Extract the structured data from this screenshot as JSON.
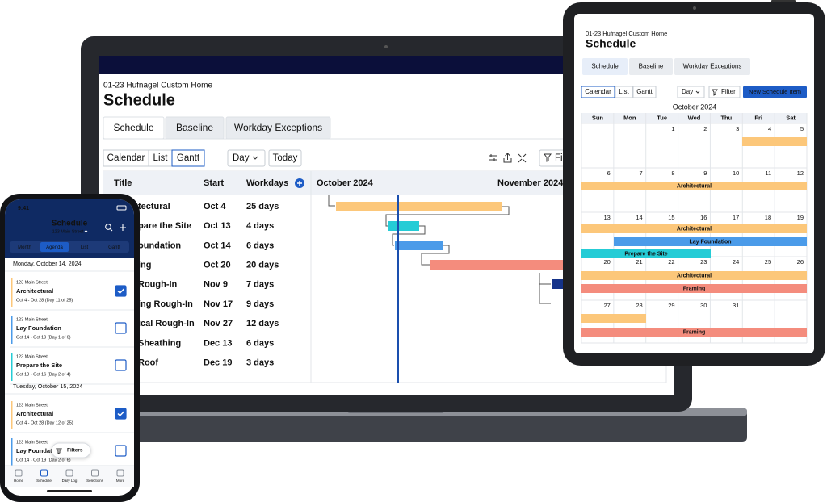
{
  "laptop": {
    "project": "01-23 Hufnagel Custom Home",
    "title": "Schedule",
    "tabs": [
      "Schedule",
      "Baseline",
      "Workday Exceptions"
    ],
    "views": [
      "Calendar",
      "List",
      "Gantt"
    ],
    "zoom": "Day",
    "today": "Today",
    "filter": "Fi",
    "columns": [
      "Title",
      "Start",
      "Workdays"
    ],
    "months": [
      "October 2024",
      "November 2024"
    ],
    "rows": [
      {
        "title": "tectural",
        "start": "Oct 4",
        "workdays": "25 days"
      },
      {
        "title": "pare the Site",
        "start": "Oct 13",
        "workdays": "4 days"
      },
      {
        "title": "oundation",
        "start": "Oct 14",
        "workdays": "6 days"
      },
      {
        "title": "ing",
        "start": "Oct 20",
        "workdays": "20 days"
      },
      {
        "title": "Rough-In",
        "start": "Nov 9",
        "workdays": "7 days"
      },
      {
        "title": "ing Rough-In",
        "start": "Nov 17",
        "workdays": "9 days"
      },
      {
        "title": "ical Rough-In",
        "start": "Nov 27",
        "workdays": "12 days"
      },
      {
        "title": "Sheathing",
        "start": "Dec 13",
        "workdays": "6 days"
      },
      {
        "title": "Roof",
        "start": "Dec 19",
        "workdays": "3 days"
      }
    ]
  },
  "tablet": {
    "project": "01-23 Hufnagel Custom Home",
    "title": "Schedule",
    "tabs": [
      "Schedule",
      "Baseline",
      "Workday Exceptions"
    ],
    "views": [
      "Calendar",
      "List",
      "Gantt"
    ],
    "zoom": "Day",
    "filter": "Filter",
    "new_item": "New Schedule Item",
    "month": "October 2024",
    "weekdays": [
      "Sun",
      "Mon",
      "Tue",
      "Wed",
      "Thu",
      "Fri",
      "Sat"
    ],
    "weeks": [
      [
        1,
        2,
        3,
        4,
        5
      ],
      [
        6,
        7,
        8,
        9,
        10,
        11,
        12
      ],
      [
        13,
        14,
        15,
        16,
        17,
        18,
        19
      ],
      [
        20,
        21,
        22,
        23,
        24,
        25,
        26
      ],
      [
        27,
        28,
        29,
        30,
        31
      ]
    ],
    "event_labels": [
      "Architectural",
      "Architectural",
      "Lay Foundation",
      "Prepare the Site",
      "Architectural",
      "Framing",
      "Framing"
    ]
  },
  "phone": {
    "time": "9:41",
    "title": "Schedule",
    "subtitle": "123 Main Street",
    "tabs": [
      "Month",
      "Agenda",
      "List",
      "Gantt"
    ],
    "days": [
      {
        "heading": "Monday, October 14, 2024",
        "items": [
          {
            "address": "123 Main Street",
            "name": "Architectural",
            "dates": "Oct 4 - Oct 28 (Day 11 of 25)",
            "checked": true
          },
          {
            "address": "123 Main Street",
            "name": "Lay Foundation",
            "dates": "Oct 14 - Oct 19 (Day 1 of 6)",
            "checked": false
          },
          {
            "address": "123 Main Street",
            "name": "Prepare the Site",
            "dates": "Oct 13 - Oct 16 (Day 2 of 4)",
            "checked": false
          }
        ]
      },
      {
        "heading": "Tuesday, October 15, 2024",
        "items": [
          {
            "address": "123 Main Street",
            "name": "Architectural",
            "dates": "Oct 4 - Oct 28 (Day 12 of 25)",
            "checked": true
          },
          {
            "address": "123 Main Street",
            "name": "Lay Foundation",
            "dates": "Oct 14 - Oct 19 (Day 2 of 6)",
            "checked": false
          }
        ]
      }
    ],
    "filters": "Filters",
    "nav": [
      "Home",
      "Schedule",
      "Daily Log",
      "Selections",
      "More"
    ]
  }
}
